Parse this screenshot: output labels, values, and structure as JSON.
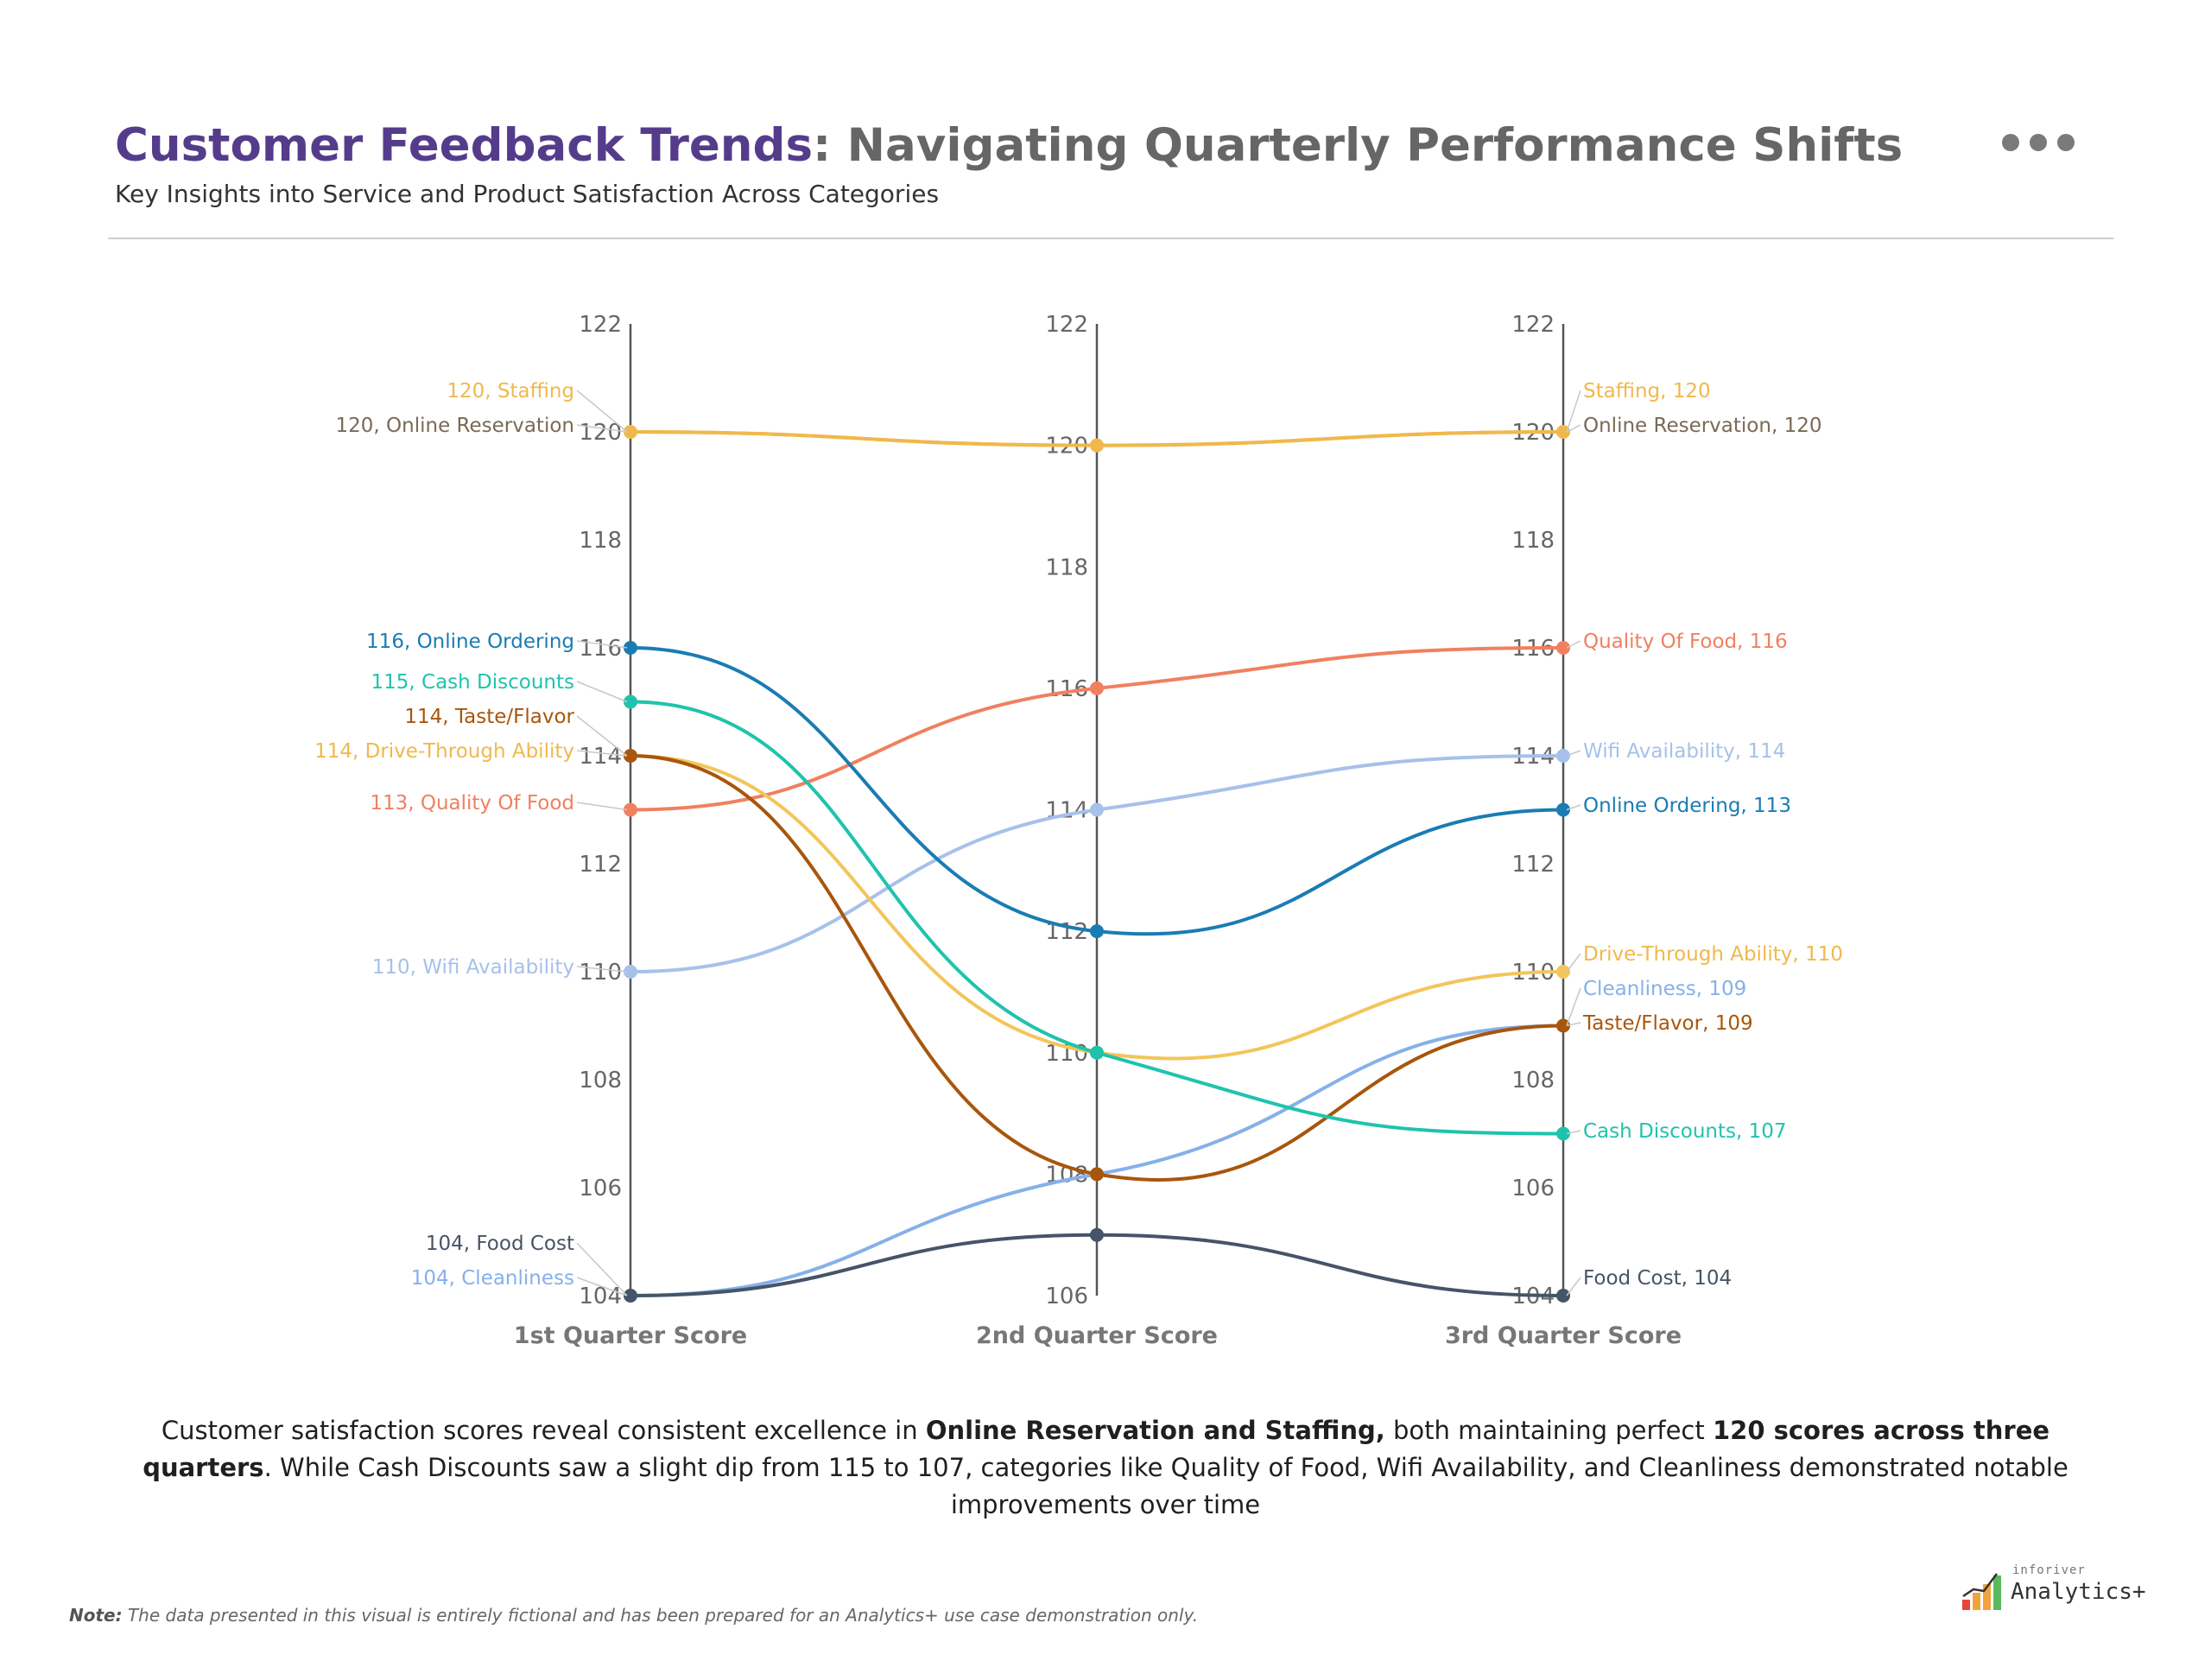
{
  "header": {
    "title_main": "Customer Feedback Trends",
    "title_sep": ":",
    "title_sub": " Navigating Quarterly Performance Shifts",
    "subtitle": "Key Insights into Service and Product Satisfaction Across Categories"
  },
  "menu": {
    "icon": "more-horizontal-icon"
  },
  "summary": {
    "p1": "Customer satisfaction scores reveal consistent excellence in ",
    "b1": "Online Reservation and Staffing,",
    "p2": " both maintaining perfect ",
    "b2": "120 scores across three quarters",
    "p3": ". While Cash Discounts saw a slight dip from 115 to 107, categories like Quality of Food, Wifi Availability, and Cleanliness demonstrated notable improvements over time"
  },
  "note": {
    "label": "Note:",
    "text": " The data presented in this visual is entirely fictional and has been prepared for an Analytics+ use case demonstration only."
  },
  "logo": {
    "small": "inforiver",
    "big": "Analytics+"
  },
  "chart_data": {
    "type": "line",
    "subtype": "slope / parallel coordinates",
    "categories": [
      "1st Quarter Score",
      "2nd Quarter Score",
      "3rd Quarter Score"
    ],
    "axes": [
      {
        "name": "1st Quarter Score",
        "ylim": [
          104,
          122
        ],
        "ticks": [
          104,
          106,
          108,
          110,
          112,
          114,
          116,
          118,
          120,
          122
        ]
      },
      {
        "name": "2nd Quarter Score",
        "ylim": [
          106,
          122
        ],
        "ticks": [
          106,
          108,
          110,
          112,
          114,
          116,
          118,
          120,
          122
        ]
      },
      {
        "name": "3rd Quarter Score",
        "ylim": [
          104,
          122
        ],
        "ticks": [
          104,
          106,
          108,
          110,
          112,
          114,
          116,
          118,
          120,
          122
        ]
      }
    ],
    "series": [
      {
        "name": "Staffing",
        "values": [
          120,
          120,
          120
        ],
        "color": "#f0b84c"
      },
      {
        "name": "Online Reservation",
        "values": [
          120,
          120,
          120
        ],
        "color": "#f0b84c",
        "labelColor": "#7a6a55"
      },
      {
        "name": "Quality Of Food",
        "values": [
          113,
          116,
          116
        ],
        "color": "#f08060"
      },
      {
        "name": "Wifi Availability",
        "values": [
          110,
          114,
          114
        ],
        "color": "#a6c1ea"
      },
      {
        "name": "Online Ordering",
        "values": [
          116,
          112,
          113
        ],
        "color": "#1a7cb3"
      },
      {
        "name": "Drive-Through Ability",
        "values": [
          114,
          110,
          110
        ],
        "color": "#f3c55a"
      },
      {
        "name": "Cleanliness",
        "values": [
          104,
          108,
          109
        ],
        "color": "#86b0ea"
      },
      {
        "name": "Taste/Flavor",
        "values": [
          114,
          108,
          109
        ],
        "color": "#a8560c"
      },
      {
        "name": "Cash Discounts",
        "values": [
          115,
          110,
          107
        ],
        "color": "#1fc3ad"
      },
      {
        "name": "Food Cost",
        "values": [
          104,
          107,
          104
        ],
        "color": "#465468"
      }
    ],
    "left_labels": [
      {
        "text": "120, Staffing",
        "series": "Staffing",
        "color": "#f0b84c"
      },
      {
        "text": "120, Online Reservation",
        "series": "Online Reservation",
        "color": "#7a6a55"
      },
      {
        "text": "116, Online Ordering",
        "series": "Online Ordering",
        "color": "#1a7cb3"
      },
      {
        "text": "115, Cash Discounts",
        "series": "Cash Discounts",
        "color": "#1fc3ad"
      },
      {
        "text": "114, Taste/Flavor",
        "series": "Taste/Flavor",
        "color": "#a8560c"
      },
      {
        "text": "114, Drive-Through Ability",
        "series": "Drive-Through Ability",
        "color": "#f0b84c"
      },
      {
        "text": "113, Quality Of Food",
        "series": "Quality Of Food",
        "color": "#f08060"
      },
      {
        "text": "110, Wifi Availability",
        "series": "Wifi Availability",
        "color": "#a6c1ea"
      },
      {
        "text": "104, Food Cost",
        "series": "Food Cost",
        "color": "#465468"
      },
      {
        "text": "104, Cleanliness",
        "series": "Cleanliness",
        "color": "#86b0ea"
      }
    ],
    "right_labels": [
      {
        "text": "Staffing, 120",
        "series": "Staffing",
        "color": "#f0b84c"
      },
      {
        "text": "Online Reservation, 120",
        "series": "Online Reservation",
        "color": "#7a6a55"
      },
      {
        "text": "Quality Of Food, 116",
        "series": "Quality Of Food",
        "color": "#f08060"
      },
      {
        "text": "Wifi Availability, 114",
        "series": "Wifi Availability",
        "color": "#a6c1ea"
      },
      {
        "text": "Online Ordering, 113",
        "series": "Online Ordering",
        "color": "#1a7cb3"
      },
      {
        "text": "Drive-Through Ability, 110",
        "series": "Drive-Through Ability",
        "color": "#f0b84c"
      },
      {
        "text": "Cleanliness, 109",
        "series": "Cleanliness",
        "color": "#86b0ea"
      },
      {
        "text": "Taste/Flavor, 109",
        "series": "Taste/Flavor",
        "color": "#a8560c"
      },
      {
        "text": "Cash Discounts, 107",
        "series": "Cash Discounts",
        "color": "#1fc3ad"
      },
      {
        "text": "Food Cost, 104",
        "series": "Food Cost",
        "color": "#465468"
      }
    ]
  }
}
